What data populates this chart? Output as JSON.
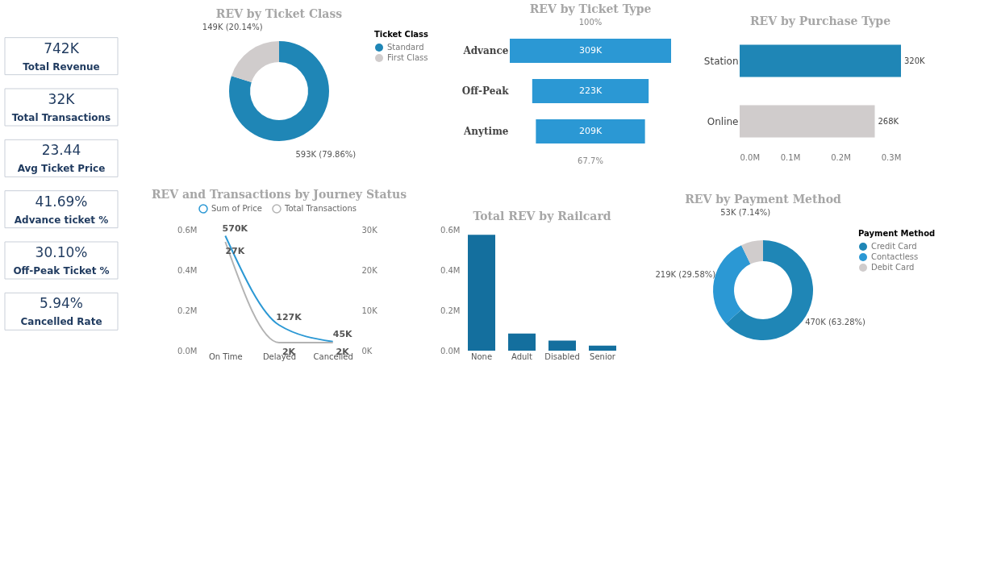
{
  "chart_data": [
    {
      "type": "other",
      "categories": [
        "Total Revenue",
        "Total Transactions",
        "Avg Ticket Price",
        "Advance ticket %",
        "Off-Peak Ticket %",
        "Cancelled Rate"
      ],
      "value_labels": [
        "742K",
        "32K",
        "23.44",
        "41.69%",
        "30.10%",
        "5.94%"
      ]
    },
    {
      "type": "donut",
      "title": "REV by Ticket Class",
      "legend_title": "Ticket Class",
      "legend": "right",
      "categories": [
        "Standard",
        "First Class"
      ],
      "values": [
        593000,
        149000
      ],
      "colors": [
        "#1f86b6",
        "#d0cccc"
      ],
      "value_labels": [
        "593K (79.86%)",
        "149K (20.14%)"
      ]
    },
    {
      "type": "other",
      "title": "REV by Ticket Type",
      "categories": [
        "Advance",
        "Off-Peak",
        "Anytime"
      ],
      "values": [
        309000,
        223000,
        209000
      ],
      "color": "#2b98d4",
      "value_labels": [
        "309K",
        "223K",
        "209K"
      ],
      "annotations": [
        "100%",
        "67.7%"
      ]
    },
    {
      "type": "bar",
      "orientation": "horizontal",
      "title": "REV by Purchase Type",
      "categories": [
        "Station",
        "Online"
      ],
      "values": [
        320000,
        268000
      ],
      "colors": [
        "#1f86b6",
        "#d0cccc"
      ],
      "value_labels": [
        "320K",
        "268K"
      ],
      "xlim": [
        0,
        320000
      ],
      "xticks": [
        {
          "value": 0,
          "label": "0.0M"
        },
        {
          "value": 100000,
          "label": "0.1M"
        },
        {
          "value": 200000,
          "label": "0.2M"
        },
        {
          "value": 300000,
          "label": "0.3M"
        }
      ]
    },
    {
      "type": "line",
      "title": "REV and Transactions by Journey Status",
      "legend": "top left",
      "categories": [
        "On Time",
        "Delayed",
        "Cancelled"
      ],
      "series": [
        {
          "name": "Sum of Price",
          "color": "#2b98d4",
          "values": [
            570000,
            127000,
            45000
          ],
          "value_labels": [
            "570K",
            "127K",
            "45K"
          ]
        },
        {
          "name": "Total Transactions",
          "color": "#b3b3b3",
          "axis": "y2",
          "values": [
            27000,
            2000,
            2000
          ],
          "value_labels": [
            "27K",
            "2K",
            "2K"
          ]
        }
      ],
      "ylim": [
        0,
        600000
      ],
      "yticks": [
        {
          "value": 0,
          "label": "0.0M"
        },
        {
          "value": 200000,
          "label": "0.2M"
        },
        {
          "value": 400000,
          "label": "0.4M"
        },
        {
          "value": 600000,
          "label": "0.6M"
        }
      ],
      "y2lim": [
        0,
        30000
      ],
      "y2ticks": [
        {
          "value": 0,
          "label": "0K"
        },
        {
          "value": 10000,
          "label": "10K"
        },
        {
          "value": 20000,
          "label": "20K"
        },
        {
          "value": 30000,
          "label": "30K"
        }
      ]
    },
    {
      "type": "bar",
      "title": "Total REV by Railcard",
      "categories": [
        "None",
        "Adult",
        "Disabled",
        "Senior"
      ],
      "values": [
        575000,
        85000,
        50000,
        25000
      ],
      "color": "#146f9e",
      "ylim": [
        0,
        600000
      ],
      "yticks": [
        {
          "value": 0,
          "label": "0.0M"
        },
        {
          "value": 200000,
          "label": "0.2M"
        },
        {
          "value": 400000,
          "label": "0.4M"
        },
        {
          "value": 600000,
          "label": "0.6M"
        }
      ]
    },
    {
      "type": "donut",
      "title": "REV by Payment Method",
      "legend_title": "Payment Method",
      "legend": "right",
      "categories": [
        "Credit Card",
        "Contactless",
        "Debit Card"
      ],
      "values": [
        470000,
        219000,
        53000
      ],
      "colors": [
        "#1f86b6",
        "#2b98d4",
        "#d0cccc"
      ],
      "value_labels": [
        "470K (63.28%)",
        "219K (29.58%)",
        "53K (7.14%)"
      ]
    }
  ]
}
